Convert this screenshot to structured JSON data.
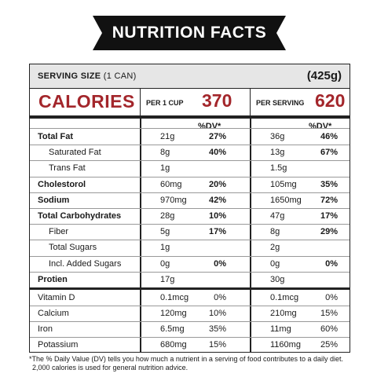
{
  "banner": {
    "title": "NUTRITION FACTS"
  },
  "serving": {
    "label": "SERVING SIZE",
    "unit": "(1 CAN)",
    "grams": "(425g)"
  },
  "calories": {
    "title": "CALORIES",
    "cup": {
      "label": "PER 1 CUP",
      "value": "370"
    },
    "serving": {
      "label": "PER SERVING",
      "value": "620"
    }
  },
  "dv_header": {
    "cup": "%DV*",
    "serving": "%DV*"
  },
  "nutrients": [
    {
      "name": "Total Fat",
      "cup_amt": "21g",
      "cup_dv": "27%",
      "srv_amt": "36g",
      "srv_dv": "46%"
    },
    {
      "name": "Saturated Fat",
      "cup_amt": "8g",
      "cup_dv": "40%",
      "srv_amt": "13g",
      "srv_dv": "67%"
    },
    {
      "name": "Trans Fat",
      "cup_amt": "1g",
      "cup_dv": "",
      "srv_amt": "1.5g",
      "srv_dv": ""
    },
    {
      "name": "Cholestorol",
      "cup_amt": "60mg",
      "cup_dv": "20%",
      "srv_amt": "105mg",
      "srv_dv": "35%"
    },
    {
      "name": "Sodium",
      "cup_amt": "970mg",
      "cup_dv": "42%",
      "srv_amt": "1650mg",
      "srv_dv": "72%"
    },
    {
      "name": "Total Carbohydrates",
      "cup_amt": "28g",
      "cup_dv": "10%",
      "srv_amt": "47g",
      "srv_dv": "17%"
    },
    {
      "name": "Fiber",
      "cup_amt": "5g",
      "cup_dv": "17%",
      "srv_amt": "8g",
      "srv_dv": "29%"
    },
    {
      "name": "Total Sugars",
      "cup_amt": "1g",
      "cup_dv": "",
      "srv_amt": "2g",
      "srv_dv": ""
    },
    {
      "name": "Incl. Added Sugars",
      "cup_amt": "0g",
      "cup_dv": "0%",
      "srv_amt": "0g",
      "srv_dv": "0%"
    },
    {
      "name": "Protien",
      "cup_amt": "17g",
      "cup_dv": "",
      "srv_amt": "30g",
      "srv_dv": ""
    }
  ],
  "vitamins": [
    {
      "name": "Vitamin D",
      "cup_amt": "0.1mcg",
      "cup_dv": "0%",
      "srv_amt": "0.1mcg",
      "srv_dv": "0%"
    },
    {
      "name": "Calcium",
      "cup_amt": "120mg",
      "cup_dv": "10%",
      "srv_amt": "210mg",
      "srv_dv": "15%"
    },
    {
      "name": "Iron",
      "cup_amt": "6.5mg",
      "cup_dv": "35%",
      "srv_amt": "11mg",
      "srv_dv": "60%"
    },
    {
      "name": "Potassium",
      "cup_amt": "680mg",
      "cup_dv": "15%",
      "srv_amt": "1160mg",
      "srv_dv": "25%"
    }
  ],
  "footnote": {
    "line1": "*The % Daily Value (DV) tells you how much a nutrient in a serving of food contributes to a daily diet.",
    "line2": "2,000 calories is used for general nutrition advice."
  },
  "colors": {
    "accent": "#a3262b",
    "banner": "#111111",
    "serving_bg": "#e6e6e6"
  }
}
